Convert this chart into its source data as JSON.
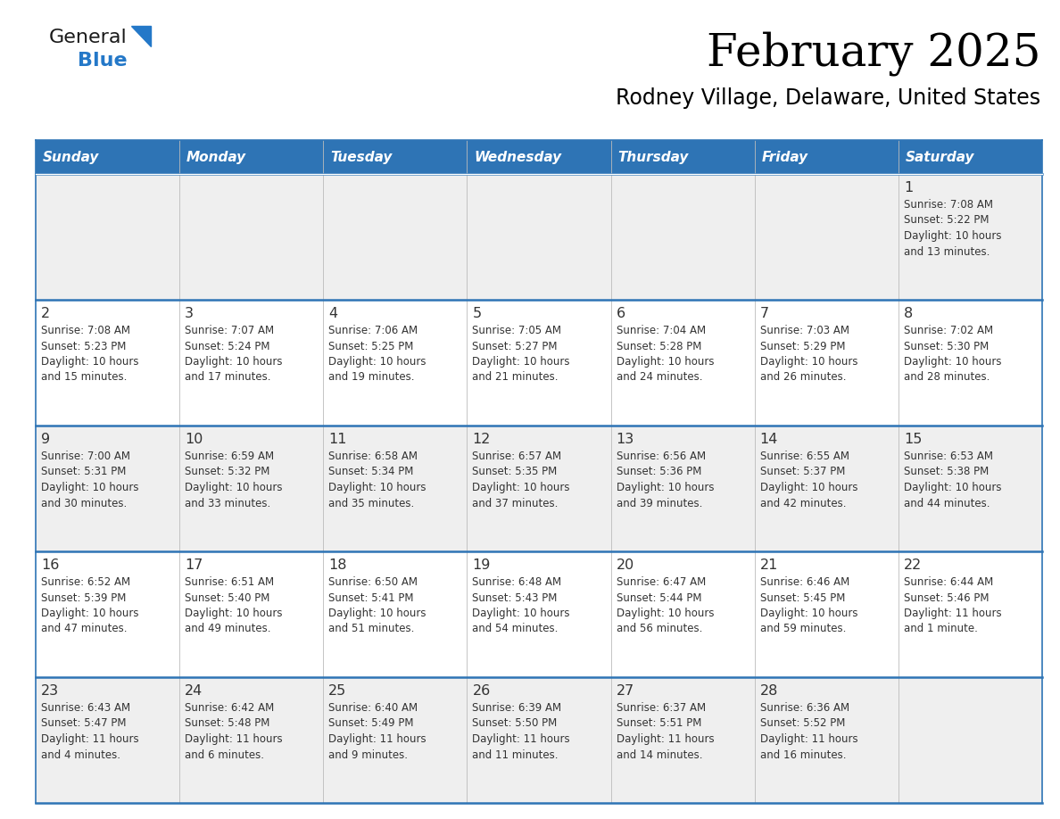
{
  "title": "February 2025",
  "subtitle": "Rodney Village, Delaware, United States",
  "header_bg": "#2E74B5",
  "header_text_color": "#FFFFFF",
  "cell_bg_alt": "#EFEFEF",
  "cell_bg_norm": "#FFFFFF",
  "border_color": "#2E74B5",
  "text_color": "#333333",
  "days_of_week": [
    "Sunday",
    "Monday",
    "Tuesday",
    "Wednesday",
    "Thursday",
    "Friday",
    "Saturday"
  ],
  "logo_general_color": "#1a1a1a",
  "logo_blue_color": "#2478C8",
  "calendar": [
    [
      {
        "day": "",
        "sunrise": "",
        "sunset": "",
        "daylight": ""
      },
      {
        "day": "",
        "sunrise": "",
        "sunset": "",
        "daylight": ""
      },
      {
        "day": "",
        "sunrise": "",
        "sunset": "",
        "daylight": ""
      },
      {
        "day": "",
        "sunrise": "",
        "sunset": "",
        "daylight": ""
      },
      {
        "day": "",
        "sunrise": "",
        "sunset": "",
        "daylight": ""
      },
      {
        "day": "",
        "sunrise": "",
        "sunset": "",
        "daylight": ""
      },
      {
        "day": "1",
        "sunrise": "7:08 AM",
        "sunset": "5:22 PM",
        "daylight": "10 hours\nand 13 minutes."
      }
    ],
    [
      {
        "day": "2",
        "sunrise": "7:08 AM",
        "sunset": "5:23 PM",
        "daylight": "10 hours\nand 15 minutes."
      },
      {
        "day": "3",
        "sunrise": "7:07 AM",
        "sunset": "5:24 PM",
        "daylight": "10 hours\nand 17 minutes."
      },
      {
        "day": "4",
        "sunrise": "7:06 AM",
        "sunset": "5:25 PM",
        "daylight": "10 hours\nand 19 minutes."
      },
      {
        "day": "5",
        "sunrise": "7:05 AM",
        "sunset": "5:27 PM",
        "daylight": "10 hours\nand 21 minutes."
      },
      {
        "day": "6",
        "sunrise": "7:04 AM",
        "sunset": "5:28 PM",
        "daylight": "10 hours\nand 24 minutes."
      },
      {
        "day": "7",
        "sunrise": "7:03 AM",
        "sunset": "5:29 PM",
        "daylight": "10 hours\nand 26 minutes."
      },
      {
        "day": "8",
        "sunrise": "7:02 AM",
        "sunset": "5:30 PM",
        "daylight": "10 hours\nand 28 minutes."
      }
    ],
    [
      {
        "day": "9",
        "sunrise": "7:00 AM",
        "sunset": "5:31 PM",
        "daylight": "10 hours\nand 30 minutes."
      },
      {
        "day": "10",
        "sunrise": "6:59 AM",
        "sunset": "5:32 PM",
        "daylight": "10 hours\nand 33 minutes."
      },
      {
        "day": "11",
        "sunrise": "6:58 AM",
        "sunset": "5:34 PM",
        "daylight": "10 hours\nand 35 minutes."
      },
      {
        "day": "12",
        "sunrise": "6:57 AM",
        "sunset": "5:35 PM",
        "daylight": "10 hours\nand 37 minutes."
      },
      {
        "day": "13",
        "sunrise": "6:56 AM",
        "sunset": "5:36 PM",
        "daylight": "10 hours\nand 39 minutes."
      },
      {
        "day": "14",
        "sunrise": "6:55 AM",
        "sunset": "5:37 PM",
        "daylight": "10 hours\nand 42 minutes."
      },
      {
        "day": "15",
        "sunrise": "6:53 AM",
        "sunset": "5:38 PM",
        "daylight": "10 hours\nand 44 minutes."
      }
    ],
    [
      {
        "day": "16",
        "sunrise": "6:52 AM",
        "sunset": "5:39 PM",
        "daylight": "10 hours\nand 47 minutes."
      },
      {
        "day": "17",
        "sunrise": "6:51 AM",
        "sunset": "5:40 PM",
        "daylight": "10 hours\nand 49 minutes."
      },
      {
        "day": "18",
        "sunrise": "6:50 AM",
        "sunset": "5:41 PM",
        "daylight": "10 hours\nand 51 minutes."
      },
      {
        "day": "19",
        "sunrise": "6:48 AM",
        "sunset": "5:43 PM",
        "daylight": "10 hours\nand 54 minutes."
      },
      {
        "day": "20",
        "sunrise": "6:47 AM",
        "sunset": "5:44 PM",
        "daylight": "10 hours\nand 56 minutes."
      },
      {
        "day": "21",
        "sunrise": "6:46 AM",
        "sunset": "5:45 PM",
        "daylight": "10 hours\nand 59 minutes."
      },
      {
        "day": "22",
        "sunrise": "6:44 AM",
        "sunset": "5:46 PM",
        "daylight": "11 hours\nand 1 minute."
      }
    ],
    [
      {
        "day": "23",
        "sunrise": "6:43 AM",
        "sunset": "5:47 PM",
        "daylight": "11 hours\nand 4 minutes."
      },
      {
        "day": "24",
        "sunrise": "6:42 AM",
        "sunset": "5:48 PM",
        "daylight": "11 hours\nand 6 minutes."
      },
      {
        "day": "25",
        "sunrise": "6:40 AM",
        "sunset": "5:49 PM",
        "daylight": "11 hours\nand 9 minutes."
      },
      {
        "day": "26",
        "sunrise": "6:39 AM",
        "sunset": "5:50 PM",
        "daylight": "11 hours\nand 11 minutes."
      },
      {
        "day": "27",
        "sunrise": "6:37 AM",
        "sunset": "5:51 PM",
        "daylight": "11 hours\nand 14 minutes."
      },
      {
        "day": "28",
        "sunrise": "6:36 AM",
        "sunset": "5:52 PM",
        "daylight": "11 hours\nand 16 minutes."
      },
      {
        "day": "",
        "sunrise": "",
        "sunset": "",
        "daylight": ""
      }
    ]
  ]
}
